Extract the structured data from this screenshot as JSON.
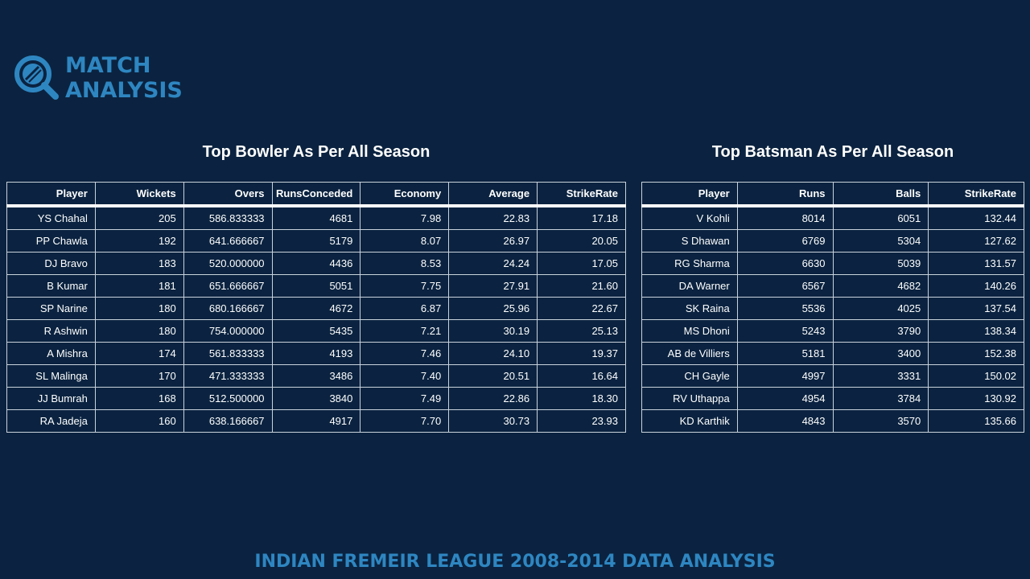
{
  "logo": {
    "line1": "MATCH",
    "line2": "ANALYSIS",
    "icon": "magnifier-cricket-ball-icon",
    "color": "#2e86c1"
  },
  "bowlers": {
    "title": "Top Bowler As Per All Season",
    "headers": [
      "Player",
      "Wickets",
      "Overs",
      "RunsConceded",
      "Economy",
      "Average",
      "StrikeRate"
    ],
    "rows": [
      [
        "YS Chahal",
        "205",
        "586.833333",
        "4681",
        "7.98",
        "22.83",
        "17.18"
      ],
      [
        "PP Chawla",
        "192",
        "641.666667",
        "5179",
        "8.07",
        "26.97",
        "20.05"
      ],
      [
        "DJ Bravo",
        "183",
        "520.000000",
        "4436",
        "8.53",
        "24.24",
        "17.05"
      ],
      [
        "B Kumar",
        "181",
        "651.666667",
        "5051",
        "7.75",
        "27.91",
        "21.60"
      ],
      [
        "SP Narine",
        "180",
        "680.166667",
        "4672",
        "6.87",
        "25.96",
        "22.67"
      ],
      [
        "R Ashwin",
        "180",
        "754.000000",
        "5435",
        "7.21",
        "30.19",
        "25.13"
      ],
      [
        "A Mishra",
        "174",
        "561.833333",
        "4193",
        "7.46",
        "24.10",
        "19.37"
      ],
      [
        "SL Malinga",
        "170",
        "471.333333",
        "3486",
        "7.40",
        "20.51",
        "16.64"
      ],
      [
        "JJ Bumrah",
        "168",
        "512.500000",
        "3840",
        "7.49",
        "22.86",
        "18.30"
      ],
      [
        "RA Jadeja",
        "160",
        "638.166667",
        "4917",
        "7.70",
        "30.73",
        "23.93"
      ]
    ]
  },
  "batsmen": {
    "title": "Top Batsman As Per All Season",
    "headers": [
      "Player",
      "Runs",
      "Balls",
      "StrikeRate"
    ],
    "rows": [
      [
        "V Kohli",
        "8014",
        "6051",
        "132.44"
      ],
      [
        "S Dhawan",
        "6769",
        "5304",
        "127.62"
      ],
      [
        "RG Sharma",
        "6630",
        "5039",
        "131.57"
      ],
      [
        "DA Warner",
        "6567",
        "4682",
        "140.26"
      ],
      [
        "SK Raina",
        "5536",
        "4025",
        "137.54"
      ],
      [
        "MS Dhoni",
        "5243",
        "3790",
        "138.34"
      ],
      [
        "AB de Villiers",
        "5181",
        "3400",
        "152.38"
      ],
      [
        "CH Gayle",
        "4997",
        "3331",
        "150.02"
      ],
      [
        "RV Uthappa",
        "4954",
        "3784",
        "130.92"
      ],
      [
        "KD Karthik",
        "4843",
        "3570",
        "135.66"
      ]
    ]
  },
  "footer": "INDIAN FREMEIR LEAGUE 2008-2014 DATA ANALYSIS",
  "colors": {
    "background": "#0b2340",
    "accent": "#2e86c1",
    "text": "#ffffff",
    "grid": "#c9d2dc"
  }
}
